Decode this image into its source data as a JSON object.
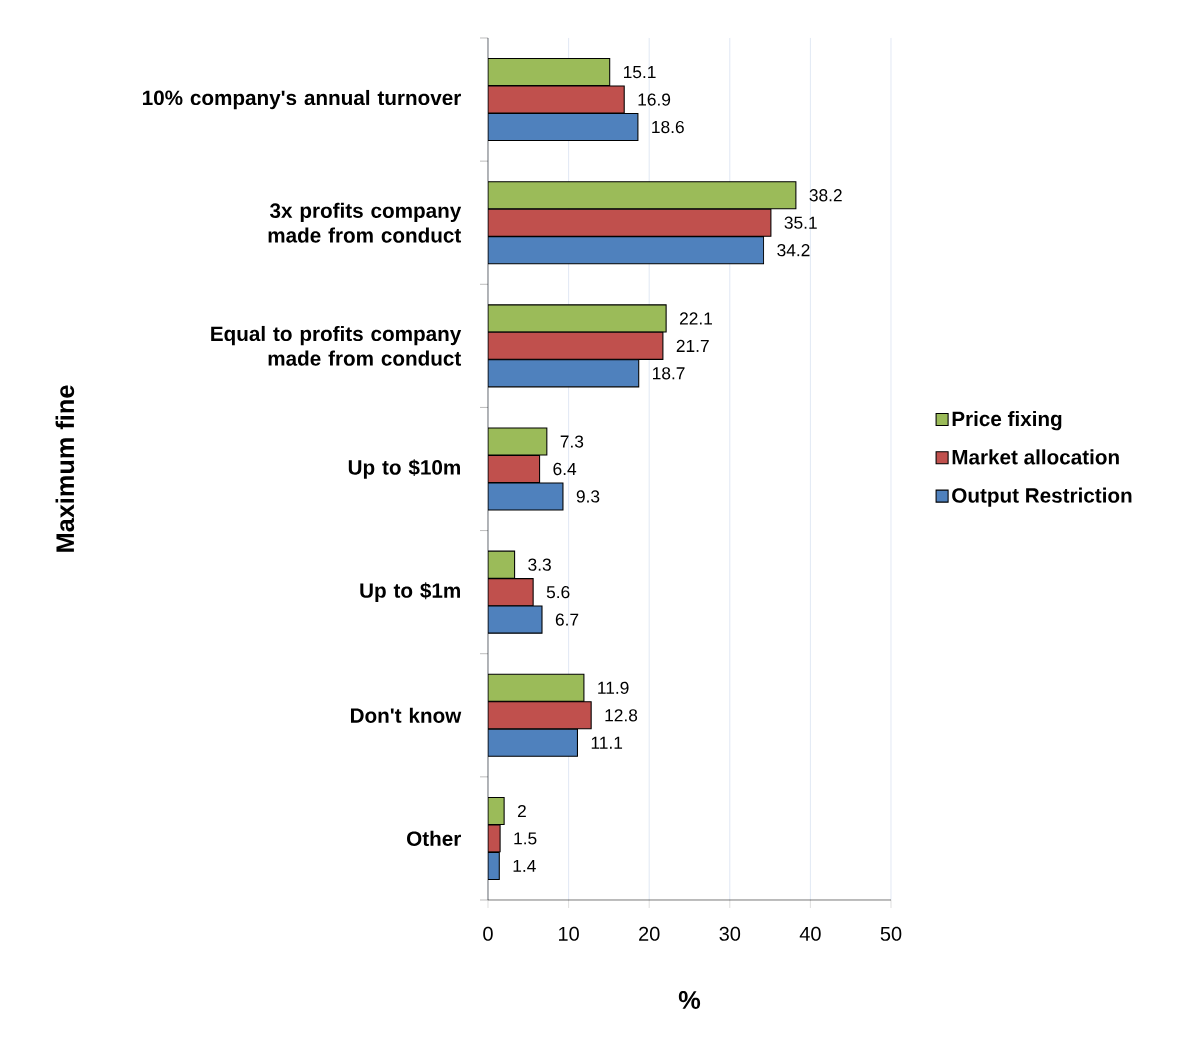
{
  "chart_data": {
    "type": "bar",
    "orientation": "horizontal",
    "xlabel": "%",
    "ylabel": "Maximum fine",
    "categories": [
      "10% company's annual turnover",
      "3x profits company made from conduct",
      "Equal to profits company made from conduct",
      "Up to $10m",
      "Up to $1m",
      "Don't know",
      "Other"
    ],
    "series": [
      {
        "name": "Price fixing",
        "color": "#9bbb59",
        "values": [
          15.1,
          38.2,
          22.1,
          7.3,
          3.3,
          11.9,
          2
        ]
      },
      {
        "name": "Market allocation",
        "color": "#c0504d",
        "values": [
          16.9,
          35.1,
          21.7,
          6.4,
          5.6,
          12.8,
          1.5
        ]
      },
      {
        "name": "Output Restriction",
        "color": "#4f81bd",
        "values": [
          18.6,
          34.2,
          18.7,
          9.3,
          6.7,
          11.1,
          1.4
        ]
      }
    ],
    "xlim": [
      0,
      50
    ],
    "xticks": [
      0,
      10,
      20,
      30,
      40,
      50
    ],
    "grid": "x",
    "legend": "right",
    "data_labels": true
  }
}
